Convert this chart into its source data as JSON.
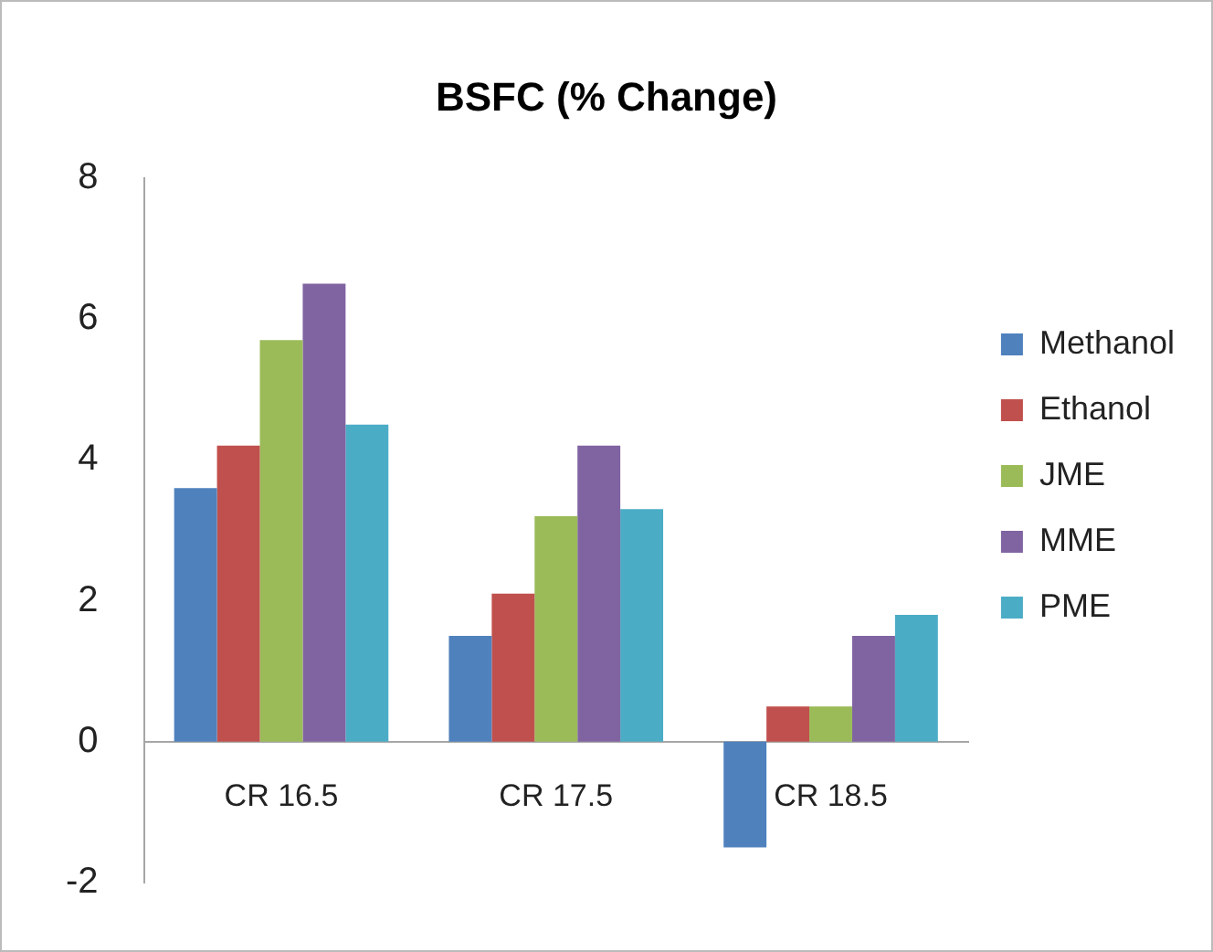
{
  "chart_data": {
    "type": "bar",
    "title": "BSFC (% Change)",
    "categories": [
      "CR 16.5",
      "CR 17.5",
      "CR 18.5"
    ],
    "series": [
      {
        "name": "Methanol",
        "color": "#4f81bd",
        "values": [
          3.6,
          1.5,
          -1.5
        ]
      },
      {
        "name": "Ethanol",
        "color": "#c0504d",
        "values": [
          4.2,
          2.1,
          0.5
        ]
      },
      {
        "name": "JME",
        "color": "#9bbb59",
        "values": [
          5.7,
          3.2,
          0.5
        ]
      },
      {
        "name": "MME",
        "color": "#8064a2",
        "values": [
          6.5,
          4.2,
          1.5
        ]
      },
      {
        "name": "PME",
        "color": "#4bacc6",
        "values": [
          4.5,
          3.3,
          1.8
        ]
      }
    ],
    "ylim": [
      -2,
      8
    ],
    "yticks": [
      -2,
      0,
      2,
      4,
      6,
      8
    ],
    "grid": false,
    "legend": "right"
  }
}
